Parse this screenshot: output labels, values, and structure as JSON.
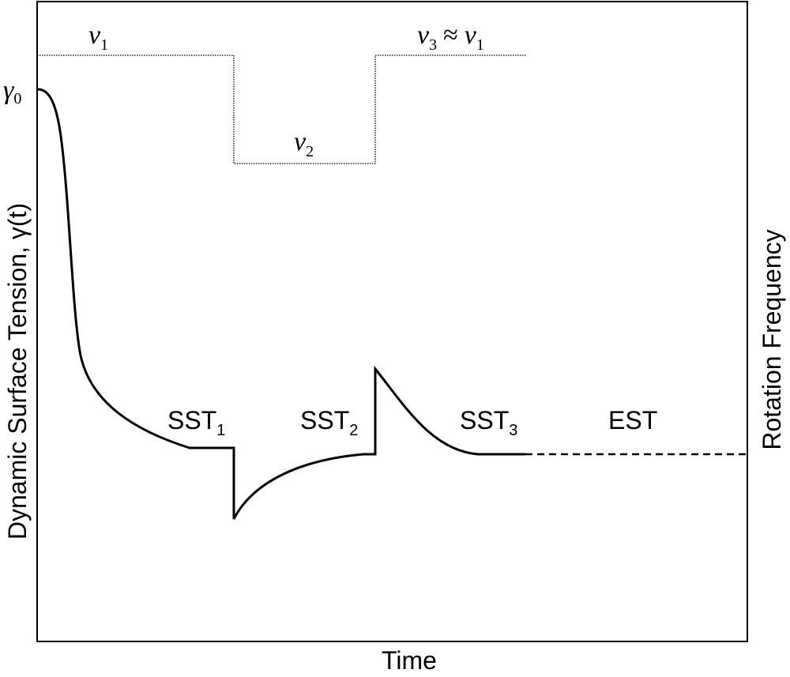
{
  "y_axis_label": "Dynamic Surface Tension, γ(t)",
  "x_axis_label": "Time",
  "y2_axis_label": "Rotation Frequency",
  "gamma0": {
    "symbol": "γ",
    "subscript": "0"
  },
  "nu1": {
    "symbol": "ν",
    "subscript": "1"
  },
  "nu2": {
    "symbol": "ν",
    "subscript": "2"
  },
  "nu3": {
    "symbol": "ν",
    "subscript": "3",
    "relation": "≈",
    "symbol2": "ν",
    "subscript2": "1"
  },
  "regions": [
    {
      "label": "SST",
      "subscript": "1"
    },
    {
      "label": "SST",
      "subscript": "2"
    },
    {
      "label": "SST",
      "subscript": "3"
    },
    {
      "label": "EST"
    }
  ]
}
